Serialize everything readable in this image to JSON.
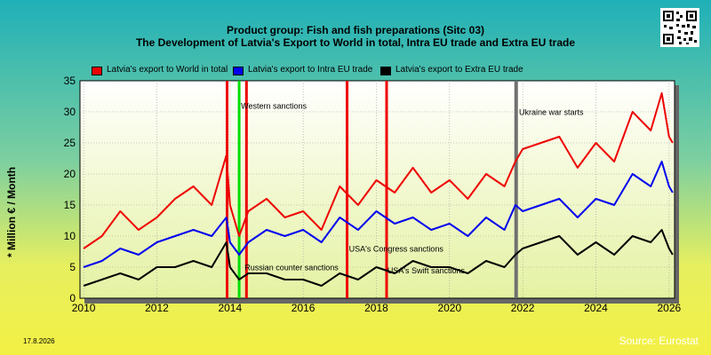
{
  "header": {
    "title_line1": "Product group: Fish and fish preparations (Sitc 03)",
    "title_line2": "The Development of Latvia's Export to World in total, Intra EU trade and Extra EU trade"
  },
  "footer": {
    "date": "17.8.2026",
    "source": "Source: Eurostat"
  },
  "qr_icon": "qr-code-icon",
  "colors": {
    "world": "#ee0000",
    "intra": "#0000ee",
    "extra": "#000000",
    "sanction_line": "#ee0000",
    "counter_line": "#00dd00",
    "war_line": "#707070",
    "plot_bg_top": "#ffffff",
    "plot_bg_bottom": "#e4f2a2",
    "source_text": "#ffffff"
  },
  "chart_data": {
    "type": "line",
    "title": "Product group: Fish and fish preparations (Sitc 03)",
    "subtitle": "The Development of Latvia's Export to World in total, Intra EU trade and Extra EU trade",
    "xlabel": "",
    "ylabel": "* Million € / Month",
    "xlim": [
      2009.9,
      2026.15
    ],
    "ylim": [
      0,
      35
    ],
    "x_ticks": [
      "2010",
      "2012",
      "2014",
      "2016",
      "2018",
      "2020",
      "2022",
      "2024",
      "2026"
    ],
    "y_ticks": [
      "0",
      "5",
      "10",
      "15",
      "20",
      "25",
      "30",
      "35"
    ],
    "grid": true,
    "legend_position": "top-left",
    "series": [
      {
        "name": "Latvia's export to World in total",
        "key": "world",
        "x": [
          2010.0,
          2010.5,
          2011.0,
          2011.5,
          2012.0,
          2012.5,
          2013.0,
          2013.5,
          2013.9,
          2014.0,
          2014.25,
          2014.5,
          2015.0,
          2015.5,
          2016.0,
          2016.5,
          2017.0,
          2017.5,
          2018.0,
          2018.5,
          2019.0,
          2019.5,
          2020.0,
          2020.5,
          2021.0,
          2021.5,
          2021.8,
          2022.0,
          2022.5,
          2023.0,
          2023.5,
          2024.0,
          2024.5,
          2025.0,
          2025.5,
          2025.8,
          2026.0,
          2026.1
        ],
        "y": [
          8,
          10,
          14,
          11,
          13,
          16,
          18,
          15,
          23,
          15,
          10,
          14,
          16,
          13,
          14,
          11,
          18,
          15,
          19,
          17,
          21,
          17,
          19,
          16,
          20,
          18,
          22,
          24,
          25,
          26,
          21,
          25,
          22,
          30,
          27,
          33,
          26,
          25
        ]
      },
      {
        "name": "Latvia's export to Intra EU trade",
        "key": "intra",
        "x": [
          2010.0,
          2010.5,
          2011.0,
          2011.5,
          2012.0,
          2012.5,
          2013.0,
          2013.5,
          2013.9,
          2014.0,
          2014.25,
          2014.5,
          2015.0,
          2015.5,
          2016.0,
          2016.5,
          2017.0,
          2017.5,
          2018.0,
          2018.5,
          2019.0,
          2019.5,
          2020.0,
          2020.5,
          2021.0,
          2021.5,
          2021.8,
          2022.0,
          2022.5,
          2023.0,
          2023.5,
          2024.0,
          2024.5,
          2025.0,
          2025.5,
          2025.8,
          2026.0,
          2026.1
        ],
        "y": [
          5,
          6,
          8,
          7,
          9,
          10,
          11,
          10,
          13,
          9,
          7,
          9,
          11,
          10,
          11,
          9,
          13,
          11,
          14,
          12,
          13,
          11,
          12,
          10,
          13,
          11,
          15,
          14,
          15,
          16,
          13,
          16,
          15,
          20,
          18,
          22,
          18,
          17
        ]
      },
      {
        "name": "Latvia's export to Extra EU trade",
        "key": "extra",
        "x": [
          2010.0,
          2010.5,
          2011.0,
          2011.5,
          2012.0,
          2012.5,
          2013.0,
          2013.5,
          2013.9,
          2014.0,
          2014.25,
          2014.5,
          2015.0,
          2015.5,
          2016.0,
          2016.5,
          2017.0,
          2017.5,
          2018.0,
          2018.5,
          2019.0,
          2019.5,
          2020.0,
          2020.5,
          2021.0,
          2021.5,
          2021.8,
          2022.0,
          2022.5,
          2023.0,
          2023.5,
          2024.0,
          2024.5,
          2025.0,
          2025.5,
          2025.8,
          2026.0,
          2026.1
        ],
        "y": [
          2,
          3,
          4,
          3,
          5,
          5,
          6,
          5,
          9,
          5,
          3,
          4,
          4,
          3,
          3,
          2,
          4,
          3,
          5,
          4,
          6,
          5,
          5,
          4,
          6,
          5,
          7,
          8,
          9,
          10,
          7,
          9,
          7,
          10,
          9,
          11,
          8,
          7
        ]
      }
    ],
    "annotations": [
      {
        "name": "sanction-line-2013",
        "x": 2013.92,
        "kind": "sanction",
        "label": ""
      },
      {
        "name": "western-sanctions-line",
        "x": 2014.25,
        "kind": "counter",
        "label": "Western sanctions",
        "label_x": 2014.3,
        "label_y": 30.5
      },
      {
        "name": "russian-counter-sanctions-line",
        "x": 2014.45,
        "kind": "sanction",
        "label": "Russian counter sanctions",
        "label_x": 2014.4,
        "label_y": 4.5
      },
      {
        "name": "usa-congress-sanctions-line",
        "x": 2017.2,
        "kind": "sanction",
        "label": "USA's Congress sanctions",
        "label_x": 2017.25,
        "label_y": 7.5
      },
      {
        "name": "usa-swift-sanctions-line",
        "x": 2018.28,
        "kind": "sanction",
        "label": "USA's Swift sanctions",
        "label_x": 2018.3,
        "label_y": 4.0
      },
      {
        "name": "ukraine-war-line",
        "x": 2021.82,
        "kind": "war",
        "label": "Ukraine war starts",
        "label_x": 2021.9,
        "label_y": 29.5
      }
    ]
  }
}
